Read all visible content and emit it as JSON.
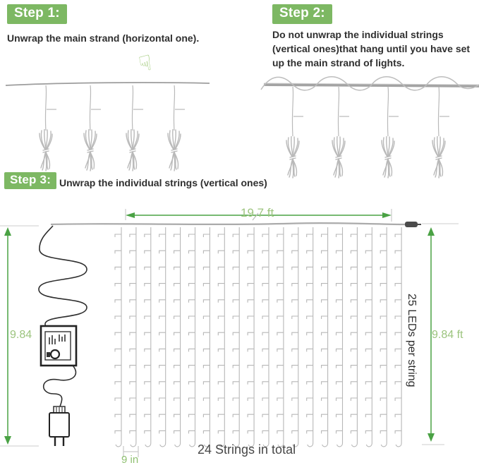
{
  "steps": [
    {
      "badge": "Step 1:",
      "text": "Unwrap the main strand (horizontal one)."
    },
    {
      "badge": "Step 2:",
      "text": "Do not unwrap the individual strings (vertical ones)that hang until you have set up the main strand of lights."
    },
    {
      "badge": "Step 3:",
      "text": "Unwrap the individual strings (vertical ones)"
    }
  ],
  "diagram": {
    "width_label": "19.7 ft",
    "left_height_label": "9.84",
    "right_height_label": "9.84 ft",
    "leds_per_string": "25 LEDs per string",
    "total_strings": "24 Strings in total",
    "string_spacing": "9 in"
  },
  "icons": {
    "hand_down": "☟"
  },
  "colors": {
    "badge_green": "#7db863",
    "dimension_green": "#4aa244",
    "label_green": "#9cc47e",
    "illustration_gray": "#b7b7b7",
    "cord_black": "#2e2e2e"
  }
}
